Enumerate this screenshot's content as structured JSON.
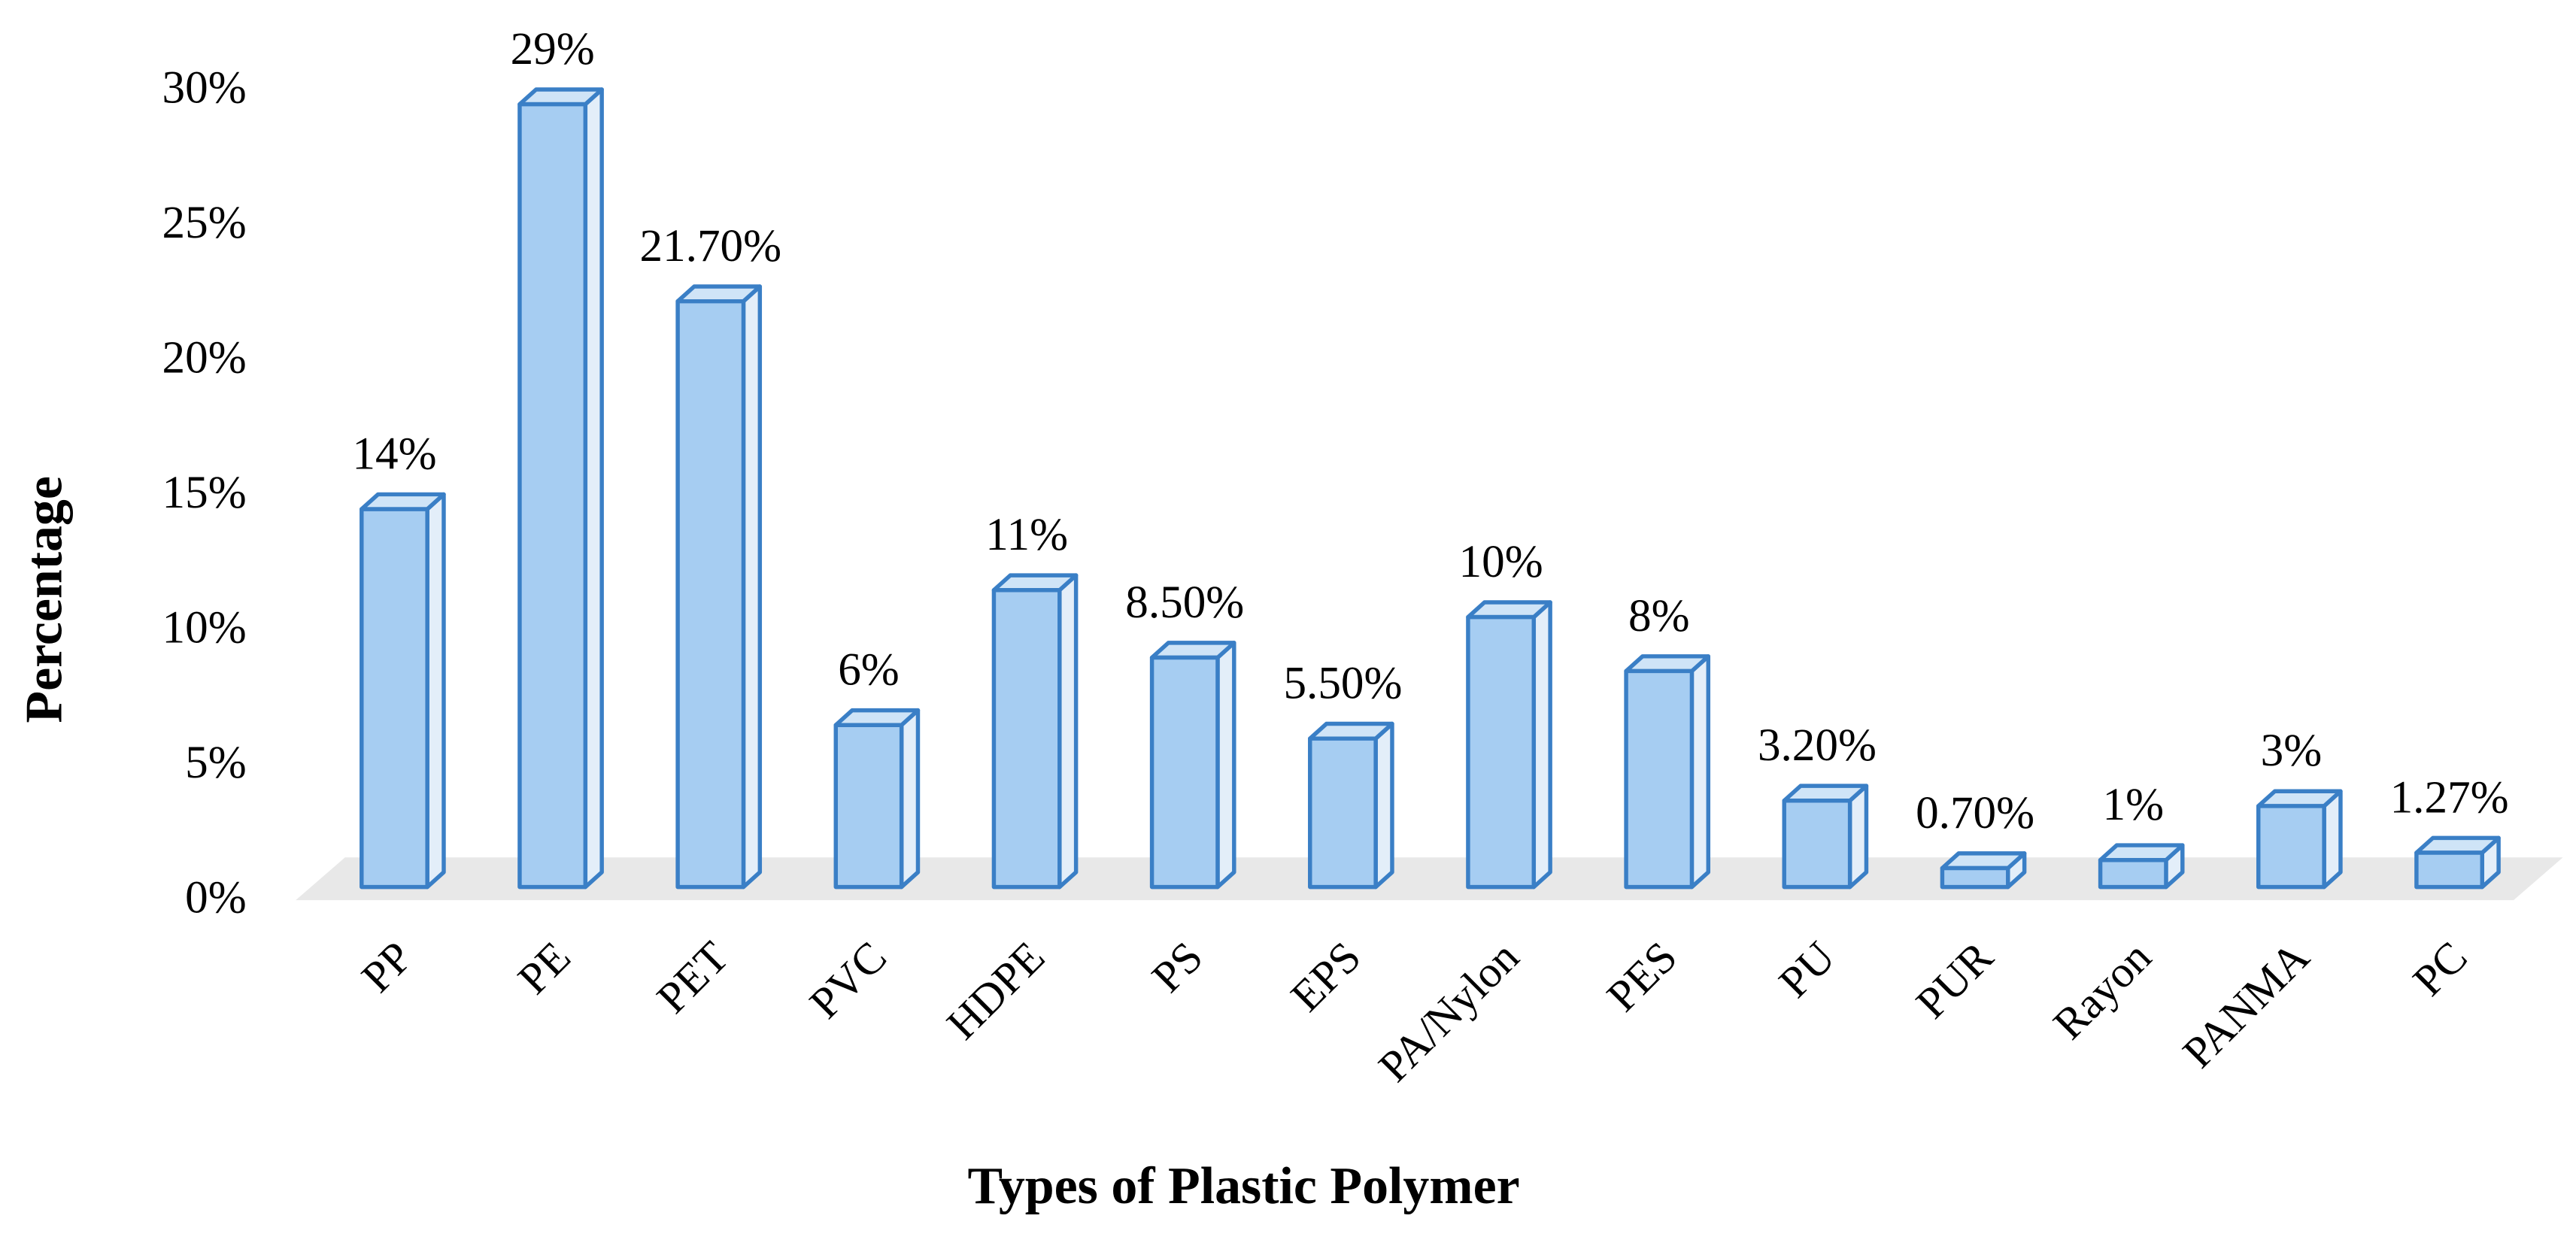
{
  "chart_data": {
    "type": "bar3d",
    "x_label": "Types of Plastic Polymer",
    "y_label": "Percentage",
    "categories": [
      "PP",
      "PE",
      "PET",
      "PVC",
      "HDPE",
      "PS",
      "EPS",
      "PA/Nylon",
      "PES",
      "PU",
      "PUR",
      "Rayon",
      "PANMA",
      "PC"
    ],
    "values": [
      14,
      29,
      21.7,
      6,
      11,
      8.5,
      5.5,
      10,
      8,
      3.2,
      0.7,
      1,
      3,
      1.27
    ],
    "value_labels": [
      "14%",
      "29%",
      "21.70%",
      "6%",
      "11%",
      "8.50%",
      "5.50%",
      "10%",
      "8%",
      "3.20%",
      "0.70%",
      "1%",
      "3%",
      "1.27%"
    ],
    "color": "#a6cdf2",
    "edge_color": "#3a7fc6",
    "ylim": [
      0,
      30
    ],
    "yticks": [
      {
        "value": 0,
        "label": "0%"
      },
      {
        "value": 5,
        "label": "5%"
      },
      {
        "value": 10,
        "label": "10%"
      },
      {
        "value": 15,
        "label": "15%"
      },
      {
        "value": 20,
        "label": "20%"
      },
      {
        "value": 25,
        "label": "25%"
      },
      {
        "value": 30,
        "label": "30%"
      }
    ],
    "grid": false
  }
}
